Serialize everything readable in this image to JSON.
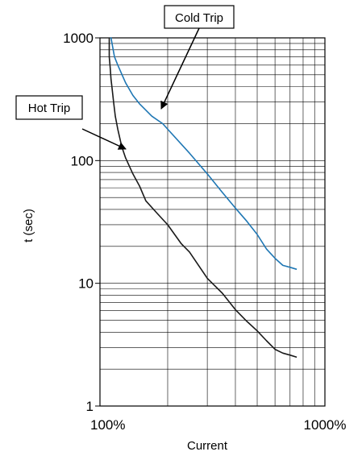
{
  "chart_data": {
    "type": "line",
    "xlabel": "Current",
    "ylabel": "t (sec)",
    "x_scale": "log",
    "y_scale": "log",
    "xlim": [
      "100%",
      "1000%"
    ],
    "ylim": [
      1,
      1000
    ],
    "x_ticks": [
      "100%",
      "1000%"
    ],
    "y_ticks": [
      "1",
      "10",
      "100",
      "1000"
    ],
    "grid": true,
    "series": [
      {
        "name": "Cold Trip",
        "color": "#1f77b4",
        "x": [
          111,
          112,
          116,
          120,
          130,
          140,
          150,
          170,
          190,
          200,
          250,
          300,
          350,
          400,
          450,
          500,
          550,
          600,
          650,
          700,
          750
        ],
        "y": [
          1000,
          1000,
          700,
          600,
          430,
          340,
          290,
          230,
          200,
          180,
          115,
          78,
          55,
          41,
          32,
          25,
          19,
          16,
          14,
          13.5,
          13
        ]
      },
      {
        "name": "Hot Trip",
        "color": "#1a1a1a",
        "x": [
          110,
          110,
          111,
          112,
          113,
          115,
          117,
          120,
          125,
          130,
          140,
          150,
          160,
          180,
          200,
          230,
          250,
          300,
          350,
          400,
          450,
          500,
          550,
          600,
          650,
          700,
          750
        ],
        "y": [
          1000,
          700,
          580,
          460,
          400,
          300,
          230,
          180,
          130,
          105,
          78,
          62,
          47,
          37,
          30,
          21,
          18,
          11,
          8.3,
          6.1,
          4.9,
          4.1,
          3.4,
          2.9,
          2.7,
          2.6,
          2.5
        ]
      }
    ],
    "annotations": [
      {
        "text": "Cold Trip",
        "series": "Cold Trip"
      },
      {
        "text": "Hot Trip",
        "series": "Hot Trip"
      }
    ]
  }
}
